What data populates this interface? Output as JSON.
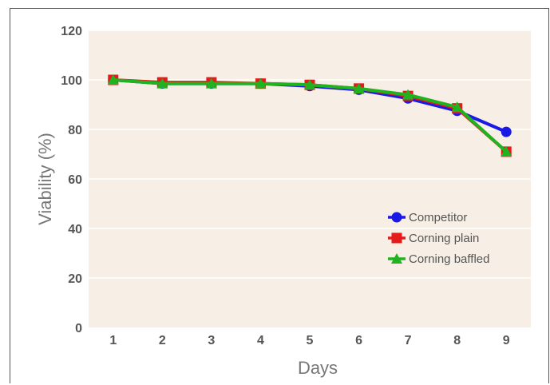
{
  "chart_data": {
    "type": "line",
    "title": "",
    "xlabel": "Days",
    "ylabel": "Viability (%)",
    "x": [
      1,
      2,
      3,
      4,
      5,
      6,
      7,
      8,
      9
    ],
    "x_tick_labels": [
      "1",
      "2",
      "3",
      "4",
      "5",
      "6",
      "7",
      "8",
      "9"
    ],
    "y_tick_labels": [
      "0",
      "20",
      "40",
      "60",
      "80",
      "100",
      "120"
    ],
    "y_ticks": [
      0,
      20,
      40,
      60,
      80,
      100,
      120
    ],
    "ylim": [
      0,
      120
    ],
    "xlim": [
      0.5,
      9.5
    ],
    "grid": true,
    "legend_position": "bottom-right",
    "background": "#f7efe5",
    "series": [
      {
        "name": "Competitor",
        "color": "#1a1ae6",
        "marker": "circle",
        "values": [
          100,
          98.5,
          98.5,
          98.5,
          97.5,
          96,
          92.5,
          87.5,
          79
        ]
      },
      {
        "name": "Corning plain",
        "color": "#e61a1a",
        "marker": "square",
        "values": [
          100,
          99,
          99,
          98.5,
          98,
          96.5,
          93.5,
          88.5,
          71
        ]
      },
      {
        "name": "Corning baffled",
        "color": "#1fb31f",
        "marker": "triangle",
        "values": [
          100,
          98.5,
          98.5,
          98.5,
          98,
          96.5,
          94,
          89,
          71
        ]
      }
    ]
  }
}
